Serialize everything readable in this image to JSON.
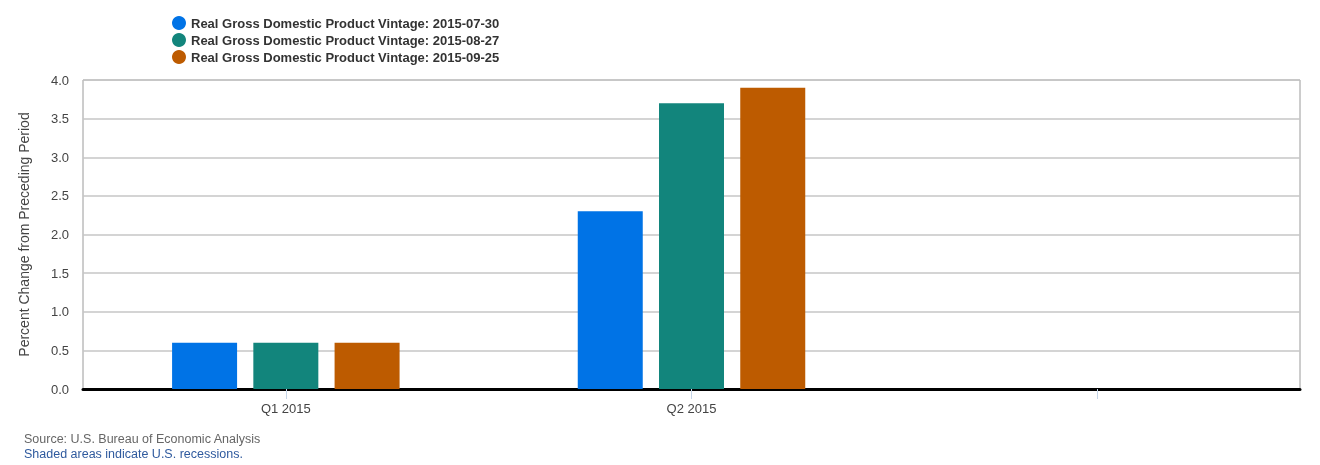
{
  "chart_data": {
    "type": "bar",
    "categories": [
      "Q1 2015",
      "Q2 2015",
      null
    ],
    "series": [
      {
        "name": "Real Gross Domestic Product Vintage: 2015-07-30",
        "color": "#0073e6",
        "values": [
          0.6,
          2.3,
          null
        ]
      },
      {
        "name": "Real Gross Domestic Product Vintage: 2015-08-27",
        "color": "#12857c",
        "values": [
          0.6,
          3.7,
          null
        ]
      },
      {
        "name": "Real Gross Domestic Product Vintage: 2015-09-25",
        "color": "#bd5b00",
        "values": [
          0.6,
          3.9,
          null
        ]
      }
    ],
    "ylabel": "Percent Change from Preceding Period",
    "ylim": [
      0,
      4
    ],
    "yticks": [
      {
        "value": 0,
        "label": "0.0"
      },
      0.5,
      {
        "value": 1,
        "label": "1.0"
      },
      1.5,
      {
        "value": 2,
        "label": "2.0"
      },
      2.5,
      {
        "value": 3,
        "label": "3.0"
      },
      3.5,
      {
        "value": 4,
        "label": "4.0"
      }
    ],
    "grid": "y",
    "legend": "top left",
    "annotations": [
      "Source: U.S. Bureau of Economic Analysis",
      "Shaded areas indicate U.S. recessions."
    ]
  }
}
